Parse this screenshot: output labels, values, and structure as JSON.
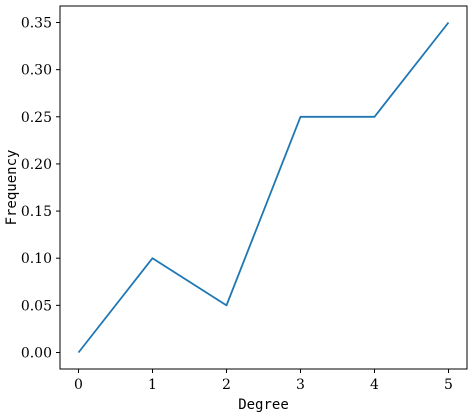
{
  "chart_data": {
    "type": "line",
    "title": "",
    "xlabel": "Degree",
    "ylabel": "Frequency",
    "x": [
      0,
      1,
      2,
      3,
      4,
      5
    ],
    "series": [
      {
        "values": [
          0.0,
          0.1,
          0.05,
          0.25,
          0.25,
          0.35
        ],
        "color": "#1f77b4"
      }
    ],
    "xlim": [
      -0.25,
      5.25
    ],
    "ylim": [
      -0.0175,
      0.3675
    ],
    "xticks": [
      0,
      1,
      2,
      3,
      4,
      5
    ],
    "xtick_labels": [
      "0",
      "1",
      "2",
      "3",
      "4",
      "5"
    ],
    "yticks": [
      0.0,
      0.05,
      0.1,
      0.15,
      0.2,
      0.25,
      0.3,
      0.35
    ],
    "ytick_labels": [
      "0.00",
      "0.05",
      "0.10",
      "0.15",
      "0.20",
      "0.25",
      "0.30",
      "0.35"
    ],
    "grid": false,
    "legend": "none"
  }
}
